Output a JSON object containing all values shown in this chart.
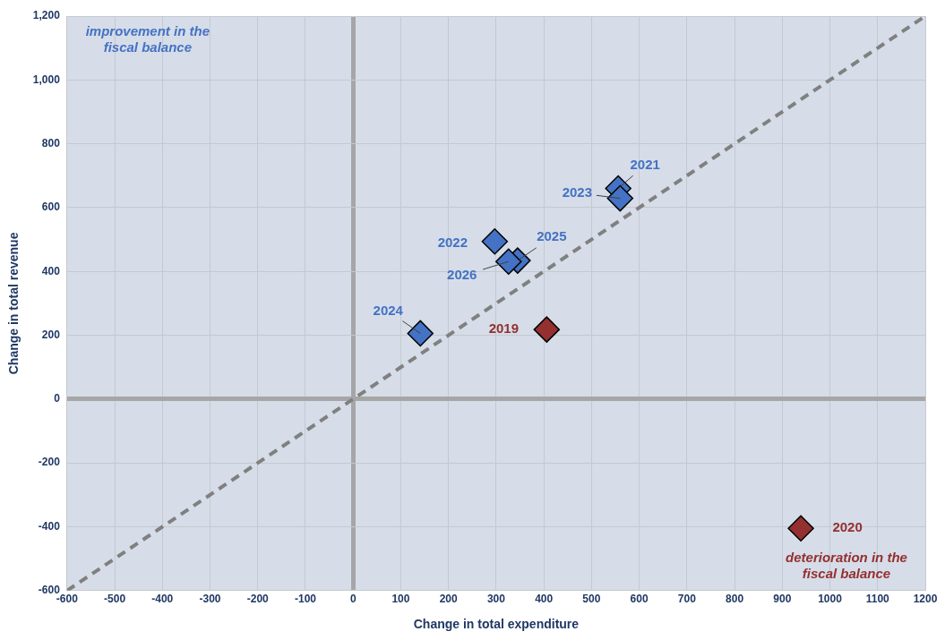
{
  "chart_data": {
    "type": "scatter",
    "xlabel": "Change in total expenditure",
    "ylabel": "Change in total revenue",
    "xlim": [
      -600,
      1200
    ],
    "xticks": [
      -600,
      -500,
      -400,
      -300,
      -200,
      -100,
      0,
      100,
      200,
      300,
      400,
      500,
      600,
      700,
      800,
      900,
      1000,
      1100,
      1200
    ],
    "ylim": [
      -600,
      1200
    ],
    "yticks": [
      -600,
      -400,
      -200,
      0,
      200,
      400,
      600,
      800,
      {
        "value": 1000,
        "label": "1,000"
      },
      {
        "value": 1200,
        "label": "1,200"
      }
    ],
    "grid": true,
    "marker": "diamond",
    "series": [
      {
        "color": "#4472c4",
        "x": [
          556,
          297,
          560,
          141,
          345,
          326
        ],
        "values": [
          660,
          494,
          629,
          206,
          434,
          431
        ]
      },
      {
        "color": "#943030",
        "x": [
          406,
          939
        ],
        "values": [
          218,
          -405
        ]
      },
      {
        "type": "line",
        "color": "#808080",
        "line_style": "dashed",
        "marker": "none",
        "x": [
          -600,
          1200
        ],
        "values": [
          -600,
          1200
        ]
      }
    ],
    "annotations": [
      {
        "text": "2019",
        "x": 406,
        "y": 218
      },
      {
        "text": "2020",
        "x": 939,
        "y": -405
      },
      {
        "text": "2021",
        "x": 556,
        "y": 660
      },
      {
        "text": "2022",
        "x": 297,
        "y": 494
      },
      {
        "text": "2023",
        "x": 560,
        "y": 629
      },
      {
        "text": "2024",
        "x": 141,
        "y": 206
      },
      {
        "text": "2025",
        "x": 345,
        "y": 434
      },
      {
        "text": "2026",
        "x": 326,
        "y": 431
      },
      "improvement in the fiscal balance",
      "deterioration in the fiscal balance"
    ]
  }
}
